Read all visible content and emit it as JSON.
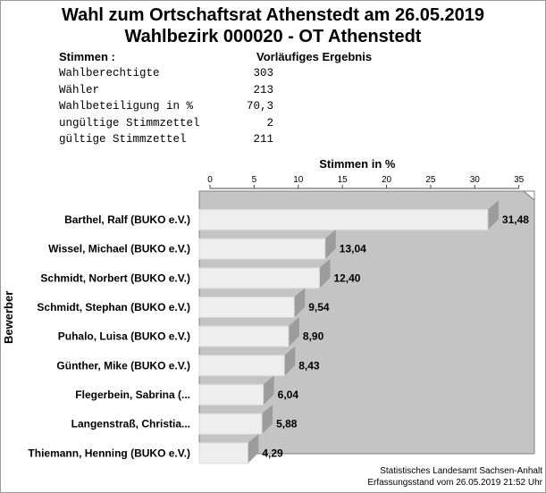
{
  "title_line1": "Wahl zum Ortschaftsrat Athenstedt am 26.05.2019",
  "title_line2": "Wahlbezirk 000020 - OT Athenstedt",
  "stats_header": {
    "label": "Stimmen  :",
    "result": "Vorläufiges Ergebnis"
  },
  "stats": [
    {
      "label": "Wahlberechtigte",
      "value": "303"
    },
    {
      "label": "Wähler",
      "value": "213"
    },
    {
      "label": "Wahlbeteiligung in %",
      "value": "70,3"
    },
    {
      "label": "ungültige Stimmzettel",
      "value": "2"
    },
    {
      "label": "gültige Stimmzettel",
      "value": "211"
    }
  ],
  "footer": {
    "source": "Statistisches Landesamt Sachsen-Anhalt",
    "timestamp": "Erfassungsstand vom 26.05.2019 21:52 Uhr"
  },
  "colors": {
    "plot_bg": "#c4c4c4",
    "bar": "#eeeeee",
    "bar_shadow": "#9c9c9c"
  },
  "chart_data": {
    "type": "bar",
    "orientation": "horizontal",
    "title": "Stimmen in %",
    "ylabel": "Bewerber",
    "xlim": [
      0,
      35
    ],
    "xticks": [
      0,
      5,
      10,
      15,
      20,
      25,
      30,
      35
    ],
    "xtick_labels": [
      "0",
      "5",
      "10",
      "15",
      "20",
      "25",
      "30",
      "35"
    ],
    "categories": [
      "Barthel, Ralf (BUKO e.V.)",
      "Wissel, Michael (BUKO e.V.)",
      "Schmidt, Norbert (BUKO e.V.)",
      "Schmidt, Stephan (BUKO e.V.)",
      "Puhalo, Luisa (BUKO e.V.)",
      "Günther, Mike (BUKO e.V.)",
      "Flegerbein, Sabrina (...",
      "Langenstraß, Christia...",
      "Thiemann, Henning (BUKO e.V.)"
    ],
    "values": [
      31.48,
      13.04,
      12.4,
      9.54,
      8.9,
      8.43,
      6.04,
      5.88,
      4.29
    ],
    "value_labels": [
      "31,48",
      "13,04",
      "12,40",
      "9,54",
      "8,90",
      "8,43",
      "6,04",
      "5,88",
      "4,29"
    ]
  }
}
